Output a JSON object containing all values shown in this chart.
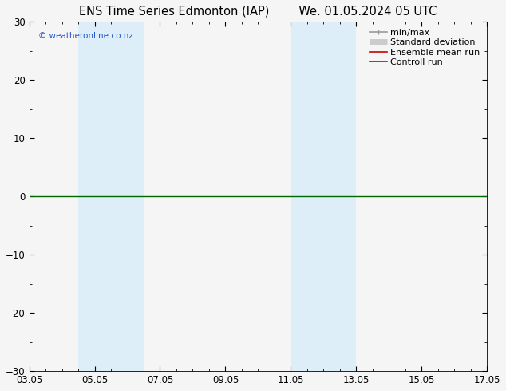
{
  "title_left": "ENS Time Series Edmonton (IAP)",
  "title_right": "We. 01.05.2024 05 UTC",
  "ylim": [
    -30,
    30
  ],
  "yticks": [
    -30,
    -20,
    -10,
    0,
    10,
    20,
    30
  ],
  "xlim": [
    0,
    14
  ],
  "xtick_positions": [
    0,
    2,
    4,
    6,
    8,
    10,
    12,
    14
  ],
  "xtick_labels": [
    "03.05",
    "05.05",
    "07.05",
    "09.05",
    "11.05",
    "13.05",
    "15.05",
    "17.05"
  ],
  "shaded_bands": [
    {
      "x_start": 1.5,
      "x_end": 3.5
    },
    {
      "x_start": 8.0,
      "x_end": 10.0
    }
  ],
  "shade_color": "#ddeef8",
  "plot_bg_color": "#f5f5f5",
  "fig_bg_color": "#f5f5f5",
  "zero_line_color": "#006600",
  "watermark": "© weatheronline.co.nz",
  "watermark_color": "#2255cc",
  "legend_items": [
    {
      "label": "min/max",
      "color": "#999999",
      "lw": 1.2
    },
    {
      "label": "Standard deviation",
      "color": "#cccccc",
      "lw": 5
    },
    {
      "label": "Ensemble mean run",
      "color": "#cc0000",
      "lw": 1.2
    },
    {
      "label": "Controll run",
      "color": "#006600",
      "lw": 1.2
    }
  ],
  "title_fontsize": 10.5,
  "tick_fontsize": 8.5,
  "legend_fontsize": 8
}
